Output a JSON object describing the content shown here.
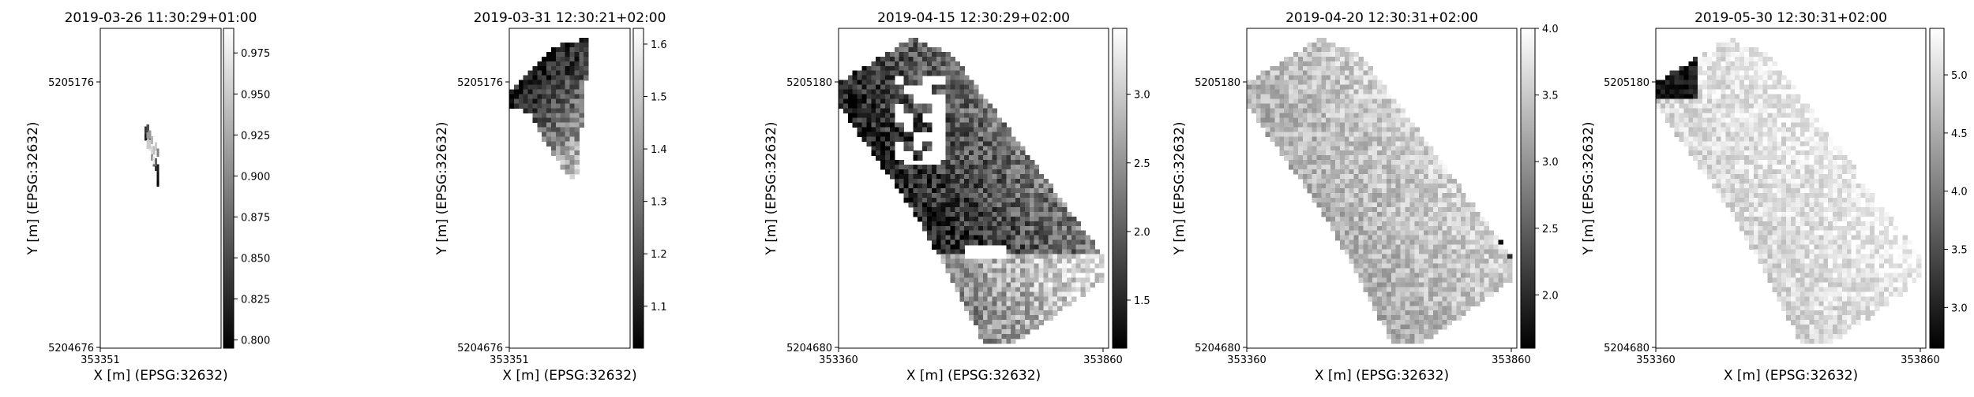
{
  "chart_data": [
    {
      "type": "heatmap",
      "title": "2019-03-26 11:30:29+01:00",
      "xlabel": "X [m] (EPSG:32632)",
      "ylabel": "Y [m] (EPSG:32632)",
      "x_ticks": [
        "353351"
      ],
      "y_ticks": [
        "5205176",
        "5204676"
      ],
      "colorbar": {
        "ticks": [
          "0.800",
          "0.825",
          "0.850",
          "0.875",
          "0.900",
          "0.925",
          "0.950",
          "0.975"
        ],
        "range": [
          0.795,
          0.99
        ]
      },
      "colormap": "greys_r"
    },
    {
      "type": "heatmap",
      "title": "2019-03-31 12:30:21+02:00",
      "xlabel": "X [m] (EPSG:32632)",
      "ylabel": "Y [m] (EPSG:32632)",
      "x_ticks": [
        "353351"
      ],
      "y_ticks": [
        "5205176",
        "5204676"
      ],
      "colorbar": {
        "ticks": [
          "1.1",
          "1.2",
          "1.3",
          "1.4",
          "1.5",
          "1.6"
        ],
        "range": [
          1.02,
          1.63
        ]
      },
      "colormap": "greys_r"
    },
    {
      "type": "heatmap",
      "title": "2019-04-15 12:30:29+02:00",
      "xlabel": "X [m] (EPSG:32632)",
      "ylabel": "Y [m] (EPSG:32632)",
      "x_ticks": [
        "353360",
        "353860"
      ],
      "y_ticks": [
        "5205180",
        "5204680"
      ],
      "colorbar": {
        "ticks": [
          "1.5",
          "2.0",
          "2.5",
          "3.0"
        ],
        "range": [
          1.15,
          3.48
        ]
      },
      "colormap": "greys_r"
    },
    {
      "type": "heatmap",
      "title": "2019-04-20 12:30:31+02:00",
      "xlabel": "X [m] (EPSG:32632)",
      "ylabel": "Y [m] (EPSG:32632)",
      "x_ticks": [
        "353360",
        "353860"
      ],
      "y_ticks": [
        "5205180",
        "5204680"
      ],
      "colorbar": {
        "ticks": [
          "2.0",
          "2.5",
          "3.0",
          "3.5",
          "4.0"
        ],
        "range": [
          1.6,
          4.0
        ]
      },
      "colormap": "greys_r"
    },
    {
      "type": "heatmap",
      "title": "2019-05-30 12:30:31+02:00",
      "xlabel": "X [m] (EPSG:32632)",
      "ylabel": "Y [m] (EPSG:32632)",
      "x_ticks": [
        "353360",
        "353860"
      ],
      "y_ticks": [
        "5205180",
        "5204680"
      ],
      "colorbar": {
        "ticks": [
          "3.0",
          "3.5",
          "4.0",
          "4.5",
          "5.0"
        ],
        "range": [
          2.65,
          5.4
        ]
      },
      "colormap": "greys_r"
    }
  ]
}
